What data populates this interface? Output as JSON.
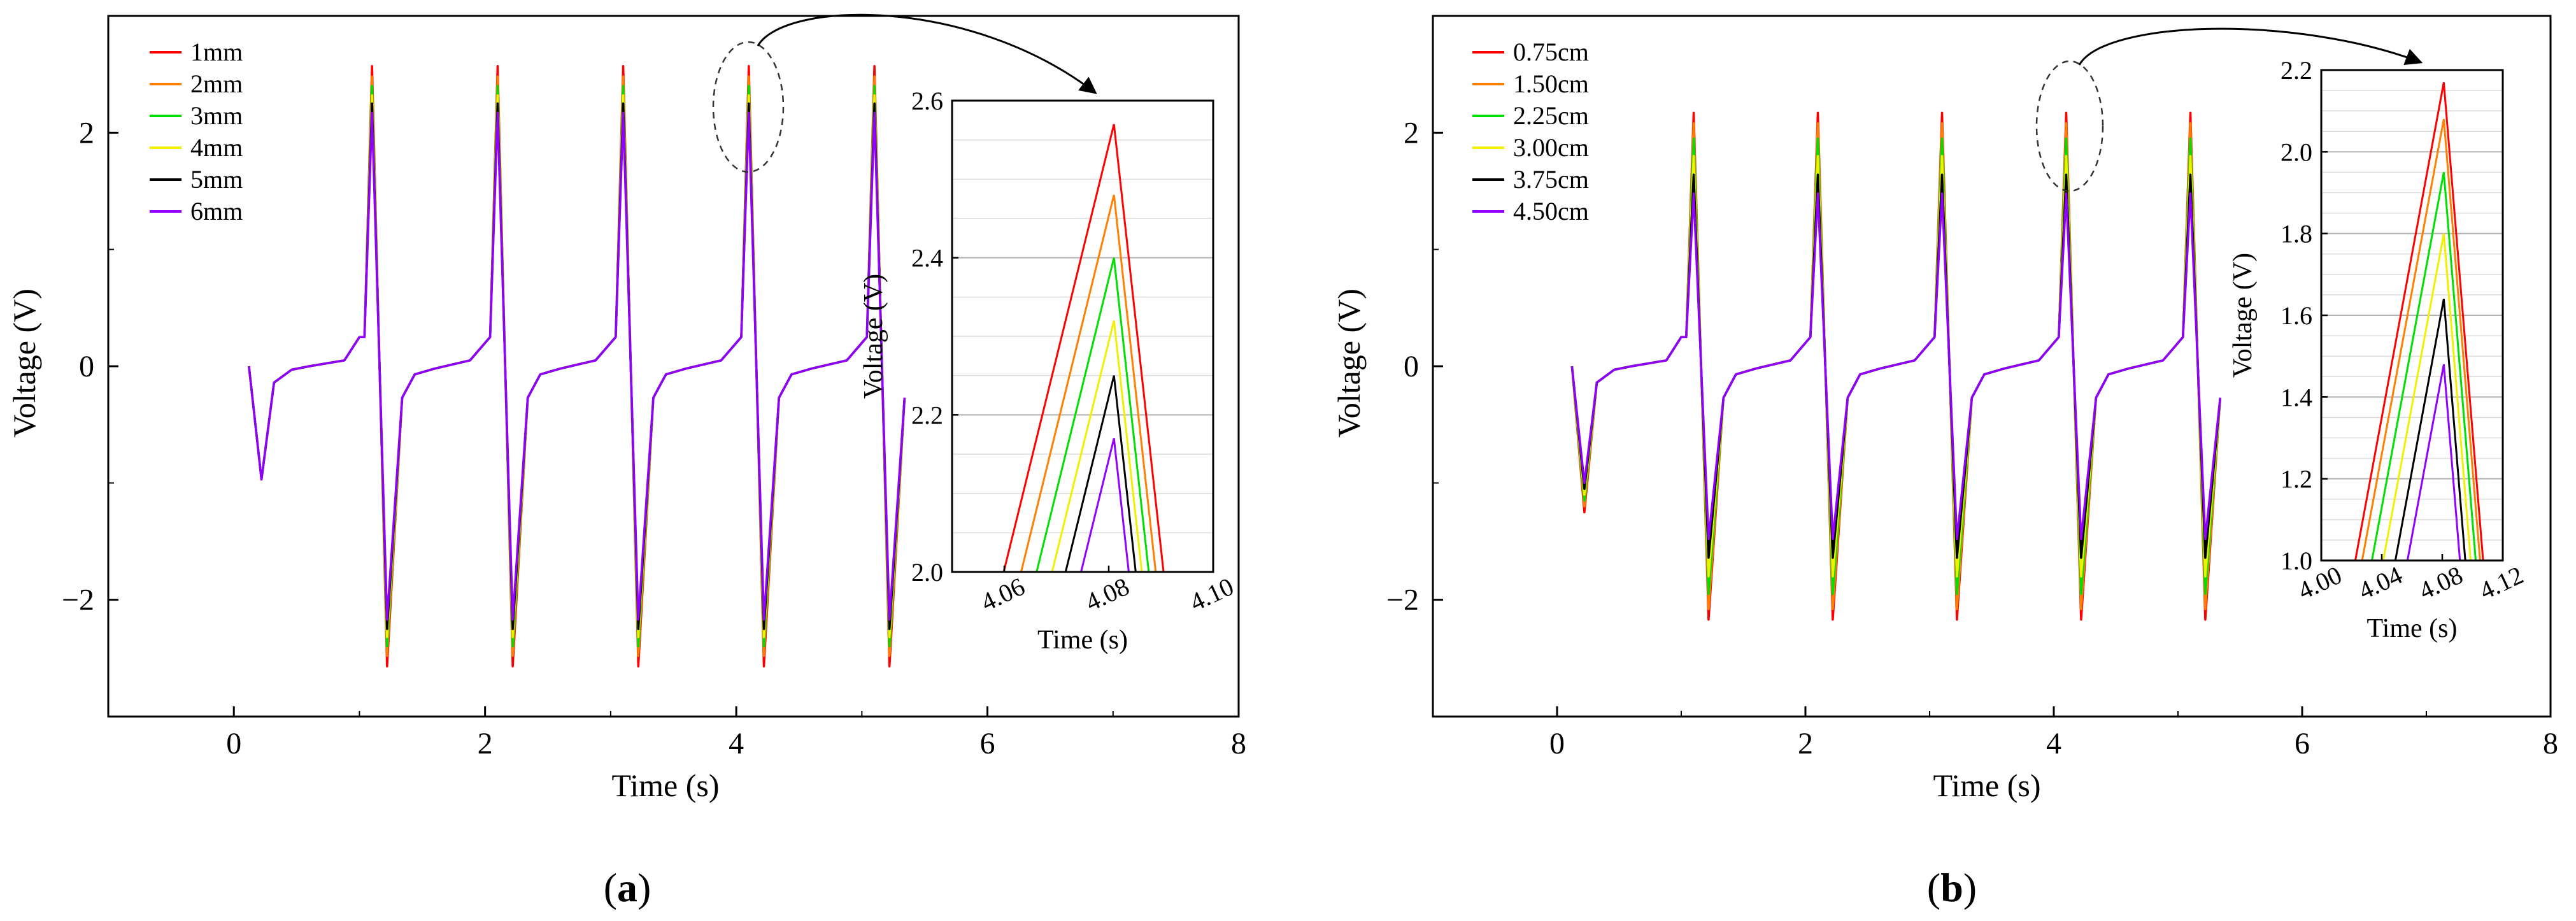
{
  "chart_data": [
    {
      "panel": "a",
      "type": "line",
      "xlabel": "Time (s)",
      "ylabel": "Voltage (V)",
      "xlim": [
        -1,
        8
      ],
      "ylim": [
        -3,
        3
      ],
      "xticks": [
        0,
        2,
        4,
        6,
        8
      ],
      "yticks": [
        -2,
        0,
        2
      ],
      "xtick_labels": [
        "0",
        "2",
        "4",
        "6",
        "8"
      ],
      "ytick_labels": [
        "−2",
        "0",
        "2"
      ],
      "legend_position": "top-left",
      "legend": [
        "1mm",
        "2mm",
        "3mm",
        "4mm",
        "5mm",
        "6mm"
      ],
      "series": [
        {
          "name": "1mm",
          "color": "#ff0000",
          "peak": 2.57,
          "trough": -2.57,
          "first_dip": -0.97
        },
        {
          "name": "2mm",
          "color": "#ff8000",
          "peak": 2.48,
          "trough": -2.48,
          "first_dip": -0.97
        },
        {
          "name": "3mm",
          "color": "#00e000",
          "peak": 2.4,
          "trough": -2.4,
          "first_dip": -0.97
        },
        {
          "name": "4mm",
          "color": "#f0f000",
          "peak": 2.32,
          "trough": -2.32,
          "first_dip": -0.97
        },
        {
          "name": "5mm",
          "color": "#000000",
          "peak": 2.25,
          "trough": -2.25,
          "first_dip": -0.97
        },
        {
          "name": "6mm",
          "color": "#9000ff",
          "peak": 2.17,
          "trough": -2.17,
          "first_dip": -0.97
        }
      ],
      "cycle_peak_times": [
        1.1,
        2.1,
        3.1,
        4.1,
        5.1
      ],
      "inset": {
        "xlabel": "Time (s)",
        "ylabel": "Voltage (V)",
        "xlim": [
          4.05,
          4.1
        ],
        "ylim": [
          2.0,
          2.6
        ],
        "xticks": [
          4.06,
          4.08,
          4.1
        ],
        "yticks": [
          2.0,
          2.2,
          2.4,
          2.6
        ],
        "xtick_labels": [
          "4.06",
          "4.08",
          "4.10"
        ],
        "ytick_labels": [
          "2.0",
          "2.2",
          "2.4",
          "2.6"
        ],
        "peak_time": 4.081,
        "slope_up": 27,
        "slope_down": 60
      }
    },
    {
      "panel": "b",
      "type": "line",
      "xlabel": "Time (s)",
      "ylabel": "Voltage (V)",
      "xlim": [
        -1,
        8
      ],
      "ylim": [
        -3,
        3
      ],
      "xticks": [
        0,
        2,
        4,
        6,
        8
      ],
      "yticks": [
        -2,
        0,
        2
      ],
      "xtick_labels": [
        "0",
        "2",
        "4",
        "6",
        "8"
      ],
      "ytick_labels": [
        "−2",
        "0",
        "2"
      ],
      "legend_position": "top-left",
      "legend": [
        "0.75cm",
        "1.50cm",
        "2.25cm",
        "3.00cm",
        "3.75cm",
        "4.50cm"
      ],
      "series": [
        {
          "name": "0.75cm",
          "color": "#ff0000",
          "peak": 2.17,
          "trough": -2.17,
          "first_dip": -1.25
        },
        {
          "name": "1.50cm",
          "color": "#ff8000",
          "peak": 2.08,
          "trough": -2.08,
          "first_dip": -1.2
        },
        {
          "name": "2.25cm",
          "color": "#00e000",
          "peak": 1.95,
          "trough": -1.95,
          "first_dip": -1.15
        },
        {
          "name": "3.00cm",
          "color": "#f0f000",
          "peak": 1.8,
          "trough": -1.8,
          "first_dip": -1.1
        },
        {
          "name": "3.75cm",
          "color": "#000000",
          "peak": 1.64,
          "trough": -1.64,
          "first_dip": -1.05
        },
        {
          "name": "4.50cm",
          "color": "#9000ff",
          "peak": 1.48,
          "trough": -1.48,
          "first_dip": -1.0
        }
      ],
      "cycle_peak_times": [
        1.1,
        2.1,
        3.1,
        4.1,
        5.1
      ],
      "inset": {
        "xlabel": "Time (s)",
        "ylabel": "Voltage (V)",
        "xlim": [
          4.0,
          4.12
        ],
        "ylim": [
          1.0,
          2.2
        ],
        "xticks": [
          4.0,
          4.04,
          4.08,
          4.12
        ],
        "yticks": [
          1.0,
          1.2,
          1.4,
          1.6,
          1.8,
          2.0,
          2.2
        ],
        "xtick_labels": [
          "4.00",
          "4.04",
          "4.08",
          "4.12"
        ],
        "ytick_labels": [
          "1.0",
          "1.2",
          "1.4",
          "1.6",
          "1.8",
          "2.0",
          "2.2"
        ],
        "peak_time": 4.081,
        "slope_up": 20,
        "slope_down": 45
      }
    }
  ],
  "panel_labels": {
    "a_open": "(",
    "a_letter": "a",
    "a_close": ")",
    "b_open": "(",
    "b_letter": "b",
    "b_close": ")"
  }
}
